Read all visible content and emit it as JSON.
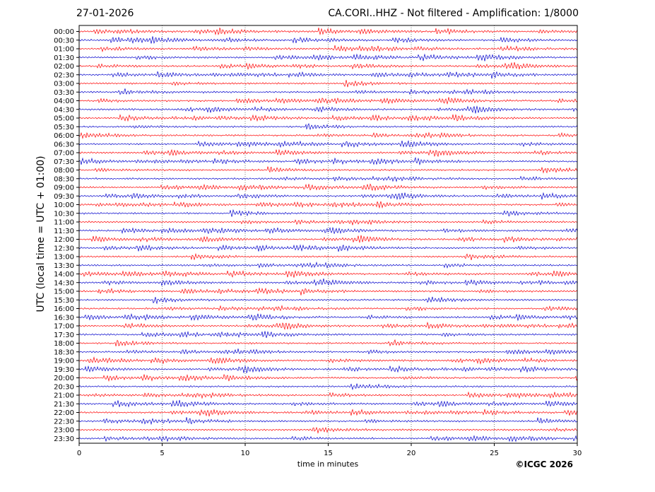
{
  "header": {
    "date": "27-01-2026",
    "title": "CA.CORI..HHZ - Not filtered - Amplification: 1/8000"
  },
  "footer": {
    "copyright": "©ICGC 2026"
  },
  "colors": {
    "odd_trace": "#ff0000",
    "even_trace": "#0000cc",
    "axis": "#000000",
    "grid": "#000000"
  },
  "chart_data": {
    "type": "line",
    "title": "CA.CORI..HHZ - Not filtered - Amplification: 1/8000",
    "xlabel": "time in minutes",
    "ylabel": "UTC (local time = UTC + 01:00)",
    "xlim": [
      0,
      30
    ],
    "xticks": [
      0,
      5,
      10,
      15,
      20,
      25,
      30
    ],
    "grid": "vertical dotted at each x tick",
    "trace_colors": [
      "red",
      "blue"
    ],
    "rows": [
      "00:00",
      "00:30",
      "01:00",
      "01:30",
      "02:00",
      "02:30",
      "03:00",
      "03:30",
      "04:00",
      "04:30",
      "05:00",
      "05:30",
      "06:00",
      "06:30",
      "07:00",
      "07:30",
      "08:00",
      "08:30",
      "09:00",
      "09:30",
      "10:00",
      "10:30",
      "11:00",
      "11:30",
      "12:00",
      "12:30",
      "13:00",
      "13:30",
      "14:00",
      "14:30",
      "15:00",
      "15:30",
      "16:00",
      "16:30",
      "17:00",
      "17:30",
      "18:00",
      "18:30",
      "19:00",
      "19:30",
      "20:00",
      "20:30",
      "21:00",
      "21:30",
      "22:00",
      "22:30",
      "23:00",
      "23:30"
    ]
  }
}
